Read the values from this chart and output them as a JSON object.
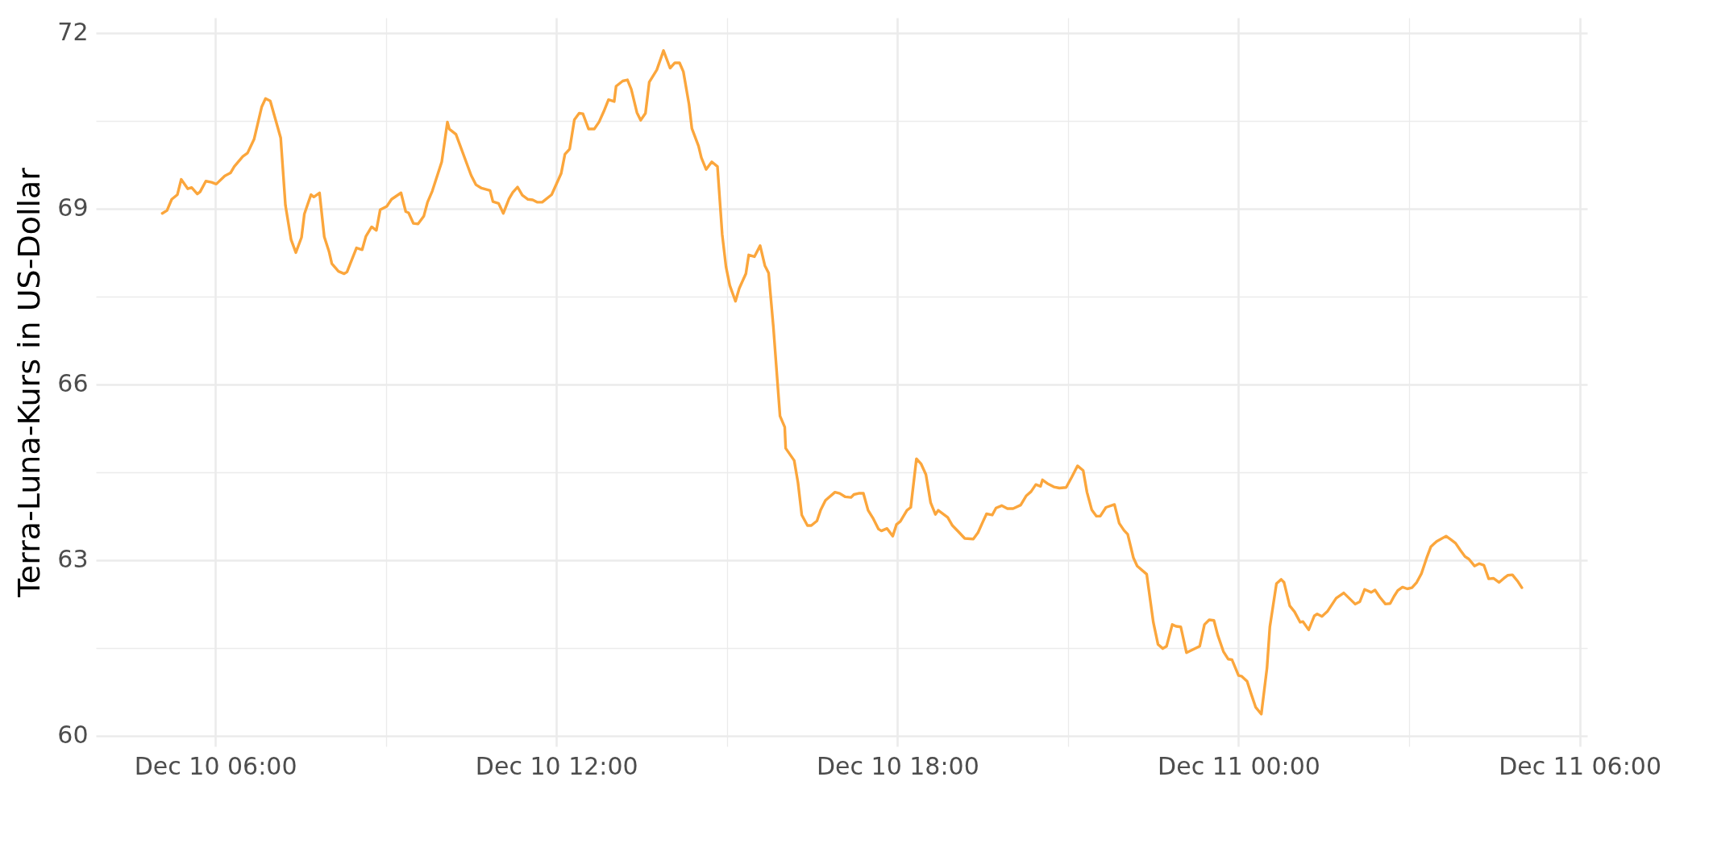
{
  "chart_data": {
    "type": "line",
    "ylabel": "Terra-Luna-Kurs in US-Dollar",
    "xlim": [
      "--12-10T03:54",
      "--12-11T06:08"
    ],
    "ylim": [
      59.82,
      72.26
    ],
    "xticks": [
      {
        "value": "--12-10T06:00",
        "label": "Dec 10 06:00"
      },
      {
        "value": "--12-10T09:00",
        "label": null
      },
      {
        "value": "--12-10T12:00",
        "label": "Dec 10 12:00"
      },
      {
        "value": "--12-10T15:00",
        "label": null
      },
      {
        "value": "--12-10T18:00",
        "label": "Dec 10 18:00"
      },
      {
        "value": "--12-10T21:00",
        "label": null
      },
      {
        "value": "--12-11T00:00",
        "label": "Dec 11 00:00"
      },
      {
        "value": "--12-11T03:00",
        "label": null
      },
      {
        "value": "--12-11T06:00",
        "label": "Dec 11 06:00"
      }
    ],
    "yticks": [
      60,
      {
        "value": 61.5,
        "label": null
      },
      63,
      {
        "value": 64.5,
        "label": null
      },
      66,
      {
        "value": 67.5,
        "label": null
      },
      69,
      {
        "value": 70.5,
        "label": null
      },
      72
    ],
    "grid": true,
    "line_style": "solid",
    "marker": "none",
    "series": [
      {
        "color": "#fba63c",
        "x": [
          "--12-10T05:04",
          "--12-10T05:09",
          "--12-10T05:14",
          "--12-10T05:20",
          "--12-10T05:24",
          "--12-10T05:31",
          "--12-10T05:35",
          "--12-10T05:41",
          "--12-10T05:44",
          "--12-10T05:50",
          "--12-10T05:56",
          "--12-10T06:01",
          "--12-10T06:10",
          "--12-10T06:16",
          "--12-10T06:20",
          "--12-10T06:29",
          "--12-10T06:34",
          "--12-10T06:41",
          "--12-10T06:49",
          "--12-10T06:53",
          "--12-10T06:58",
          "--12-10T07:09",
          "--12-10T07:14",
          "--12-10T07:20",
          "--12-10T07:25",
          "--12-10T07:31",
          "--12-10T07:34",
          "--12-10T07:41",
          "--12-10T07:44",
          "--12-10T07:50",
          "--12-10T07:55",
          "--12-10T08:00",
          "--12-10T08:03",
          "--12-10T08:10",
          "--12-10T08:16",
          "--12-10T08:19",
          "--12-10T08:29",
          "--12-10T08:35",
          "--12-10T08:39",
          "--12-10T08:45",
          "--12-10T08:50",
          "--12-10T08:54",
          "--12-10T09:01",
          "--12-10T09:06",
          "--12-10T09:16",
          "--12-10T09:21",
          "--12-10T09:24",
          "--12-10T09:29",
          "--12-10T09:34",
          "--12-10T09:40",
          "--12-10T09:44",
          "--12-10T09:49",
          "--12-10T09:59",
          "--12-10T10:05",
          "--12-10T10:07",
          "--12-10T10:14",
          "--12-10T10:30",
          "--12-10T10:35",
          "--12-10T10:41",
          "--12-10T10:50",
          "--12-10T10:53",
          "--12-10T10:59",
          "--12-10T11:04",
          "--12-10T11:10",
          "--12-10T11:14",
          "--12-10T11:19",
          "--12-10T11:24",
          "--12-10T11:30",
          "--12-10T11:35",
          "--12-10T11:40",
          "--12-10T11:45",
          "--12-10T11:55",
          "--12-10T12:05",
          "--12-10T12:09",
          "--12-10T12:14",
          "--12-10T12:19",
          "--12-10T12:24",
          "--12-10T12:28",
          "--12-10T12:34",
          "--12-10T12:40",
          "--12-10T12:45",
          "--12-10T12:50",
          "--12-10T12:55",
          "--12-10T13:01",
          "--12-10T13:03",
          "--12-10T13:10",
          "--12-10T13:15",
          "--12-10T13:19",
          "--12-10T13:25",
          "--12-10T13:29",
          "--12-10T13:34",
          "--12-10T13:38",
          "--12-10T13:46",
          "--12-10T13:52",
          "--12-10T13:53",
          "--12-10T14:00",
          "--12-10T14:05",
          "--12-10T14:10",
          "--12-10T14:14",
          "--12-10T14:20",
          "--12-10T14:23",
          "--12-10T14:30",
          "--12-10T14:33",
          "--12-10T14:38",
          "--12-10T14:44",
          "--12-10T14:50",
          "--12-10T14:55",
          "--12-10T14:59",
          "--12-10T15:03",
          "--12-10T15:09",
          "--12-10T15:13",
          "--12-10T15:20",
          "--12-10T15:23",
          "--12-10T15:29",
          "--12-10T15:35",
          "--12-10T15:40",
          "--12-10T15:44",
          "--12-10T15:49",
          "--12-10T15:56",
          "--12-10T16:01",
          "--12-10T16:02",
          "--12-10T16:11",
          "--12-10T16:15",
          "--12-10T16:19",
          "--12-10T16:25",
          "--12-10T16:29",
          "--12-10T16:35",
          "--12-10T16:39",
          "--12-10T16:44",
          "--12-10T16:54",
          "--12-10T16:59",
          "--12-10T17:05",
          "--12-10T17:11",
          "--12-10T17:14",
          "--12-10T17:19",
          "--12-10T17:24",
          "--12-10T17:29",
          "--12-10T17:34",
          "--12-10T17:40",
          "--12-10T17:43",
          "--12-10T17:49",
          "--12-10T17:55",
          "--12-10T17:59",
          "--12-10T18:03",
          "--12-10T18:10",
          "--12-10T18:14",
          "--12-10T18:20",
          "--12-10T18:25",
          "--12-10T18:30",
          "--12-10T18:35",
          "--12-10T18:40",
          "--12-10T18:43",
          "--12-10T18:53",
          "--12-10T18:58",
          "--12-10T19:04",
          "--12-10T19:11",
          "--12-10T19:20",
          "--12-10T19:25",
          "--12-10T19:30",
          "--12-10T19:34",
          "--12-10T19:40",
          "--12-10T19:44",
          "--12-10T19:50",
          "--12-10T19:56",
          "--12-10T20:02",
          "--12-10T20:10",
          "--12-10T20:16",
          "--12-10T20:21",
          "--12-10T20:26",
          "--12-10T20:31",
          "--12-10T20:33",
          "--12-10T20:38",
          "--12-10T20:45",
          "--12-10T20:51",
          "--12-10T20:58",
          "--12-10T21:04",
          "--12-10T21:10",
          "--12-10T21:16",
          "--12-10T21:20",
          "--12-10T21:25",
          "--12-10T21:30",
          "--12-10T21:34",
          "--12-10T21:40",
          "--12-10T21:49",
          "--12-10T21:54",
          "--12-10T21:59",
          "--12-10T22:03",
          "--12-10T22:09",
          "--12-10T22:13",
          "--12-10T22:23",
          "--12-10T22:30",
          "--12-10T22:35",
          "--12-10T22:40",
          "--12-10T22:44",
          "--12-10T22:50",
          "--12-10T22:54",
          "--12-10T22:59",
          "--12-10T23:05",
          "--12-10T23:19",
          "--12-10T23:24",
          "--12-10T23:29",
          "--12-10T23:34",
          "--12-10T23:38",
          "--12-10T23:44",
          "--12-10T23:49",
          "--12-10T23:53",
          "--12-11T00:00",
          "--12-11T00:03",
          "--12-11T00:09",
          "--12-11T00:13",
          "--12-11T00:18",
          "--12-11T00:24",
          "--12-11T00:30",
          "--12-11T00:33",
          "--12-11T00:40",
          "--12-11T00:45",
          "--12-11T00:48",
          "--12-11T00:54",
          "--12-11T00:59",
          "--12-11T01:05",
          "--12-11T01:08",
          "--12-11T01:14",
          "--12-11T01:20",
          "--12-11T01:23",
          "--12-11T01:28",
          "--12-11T01:34",
          "--12-11T01:43",
          "--12-11T01:51",
          "--12-11T01:58",
          "--12-11T02:03",
          "--12-11T02:08",
          "--12-11T02:13",
          "--12-11T02:20",
          "--12-11T02:24",
          "--12-11T02:29",
          "--12-11T02:35",
          "--12-11T02:40",
          "--12-11T02:44",
          "--12-11T02:48",
          "--12-11T02:53",
          "--12-11T02:58",
          "--12-11T03:03",
          "--12-11T03:08",
          "--12-11T03:13",
          "--12-11T03:19",
          "--12-11T03:23",
          "--12-11T03:29",
          "--12-11T03:39",
          "--12-11T03:44",
          "--12-11T03:49",
          "--12-11T03:54",
          "--12-11T03:59",
          "--12-11T04:03",
          "--12-11T04:09",
          "--12-11T04:14",
          "--12-11T04:19",
          "--12-11T04:24",
          "--12-11T04:29",
          "--12-11T04:35",
          "--12-11T04:40",
          "--12-11T04:44",
          "--12-11T04:49",
          "--12-11T04:55",
          "--12-11T04:59"
        ],
        "values": [
          68.92,
          68.97,
          69.16,
          69.24,
          69.5,
          69.34,
          69.36,
          69.25,
          69.29,
          69.47,
          69.45,
          69.42,
          69.56,
          69.61,
          69.72,
          69.89,
          69.95,
          70.19,
          70.74,
          70.88,
          70.84,
          70.21,
          69.06,
          68.47,
          68.25,
          68.51,
          68.91,
          69.24,
          69.2,
          69.27,
          68.52,
          68.27,
          68.06,
          67.93,
          67.89,
          67.92,
          68.33,
          68.3,
          68.53,
          68.69,
          68.63,
          68.98,
          69.04,
          69.16,
          69.27,
          68.95,
          68.93,
          68.75,
          68.74,
          68.87,
          69.11,
          69.3,
          69.8,
          70.48,
          70.36,
          70.27,
          69.57,
          69.41,
          69.35,
          69.31,
          69.12,
          69.09,
          68.92,
          69.17,
          69.28,
          69.37,
          69.23,
          69.16,
          69.15,
          69.11,
          69.11,
          69.24,
          69.6,
          69.93,
          70.02,
          70.52,
          70.63,
          70.62,
          70.36,
          70.36,
          70.48,
          70.66,
          70.86,
          70.83,
          71.09,
          71.18,
          71.2,
          71.04,
          70.64,
          70.51,
          70.63,
          71.16,
          71.37,
          71.65,
          71.7,
          71.4,
          71.49,
          71.49,
          71.34,
          70.78,
          70.37,
          70.07,
          69.87,
          69.67,
          69.8,
          69.72,
          68.56,
          68.01,
          67.69,
          67.42,
          67.64,
          67.89,
          68.21,
          68.18,
          68.37,
          68.03,
          67.9,
          66.98,
          65.46,
          65.27,
          64.91,
          64.7,
          64.32,
          63.77,
          63.59,
          63.59,
          63.67,
          63.86,
          64.02,
          64.16,
          64.14,
          64.08,
          64.07,
          64.12,
          64.14,
          64.14,
          63.85,
          63.72,
          63.53,
          63.5,
          63.54,
          63.41,
          63.61,
          63.66,
          63.85,
          63.9,
          64.73,
          64.64,
          64.46,
          63.98,
          63.78,
          63.85,
          63.73,
          63.59,
          63.49,
          63.37,
          63.36,
          63.47,
          63.65,
          63.79,
          63.77,
          63.89,
          63.93,
          63.88,
          63.88,
          63.94,
          64.1,
          64.17,
          64.29,
          64.26,
          64.37,
          64.31,
          64.25,
          64.23,
          64.24,
          64.42,
          64.61,
          64.53,
          64.16,
          63.86,
          63.75,
          63.75,
          63.9,
          63.95,
          63.63,
          63.51,
          63.44,
          63.04,
          62.9,
          62.76,
          61.94,
          61.56,
          61.49,
          61.53,
          61.9,
          61.87,
          61.86,
          61.42,
          61.53,
          61.9,
          61.98,
          61.97,
          61.72,
          61.44,
          61.31,
          61.3,
          61.03,
          61.02,
          60.93,
          60.73,
          60.49,
          60.37,
          61.16,
          61.86,
          62.6,
          62.67,
          62.62,
          62.22,
          62.12,
          61.94,
          61.95,
          61.81,
          62.05,
          62.08,
          62.04,
          62.13,
          62.35,
          62.44,
          62.33,
          62.25,
          62.29,
          62.5,
          62.45,
          62.49,
          62.37,
          62.25,
          62.26,
          62.38,
          62.48,
          62.54,
          62.51,
          62.53,
          62.62,
          62.77,
          63.06,
          63.23,
          63.32,
          63.41,
          63.35,
          63.29,
          63.17,
          63.06,
          63.02,
          62.9,
          62.94,
          62.91,
          62.68,
          62.69,
          62.62,
          62.69,
          62.74,
          62.75,
          62.63,
          62.53
        ]
      }
    ]
  }
}
